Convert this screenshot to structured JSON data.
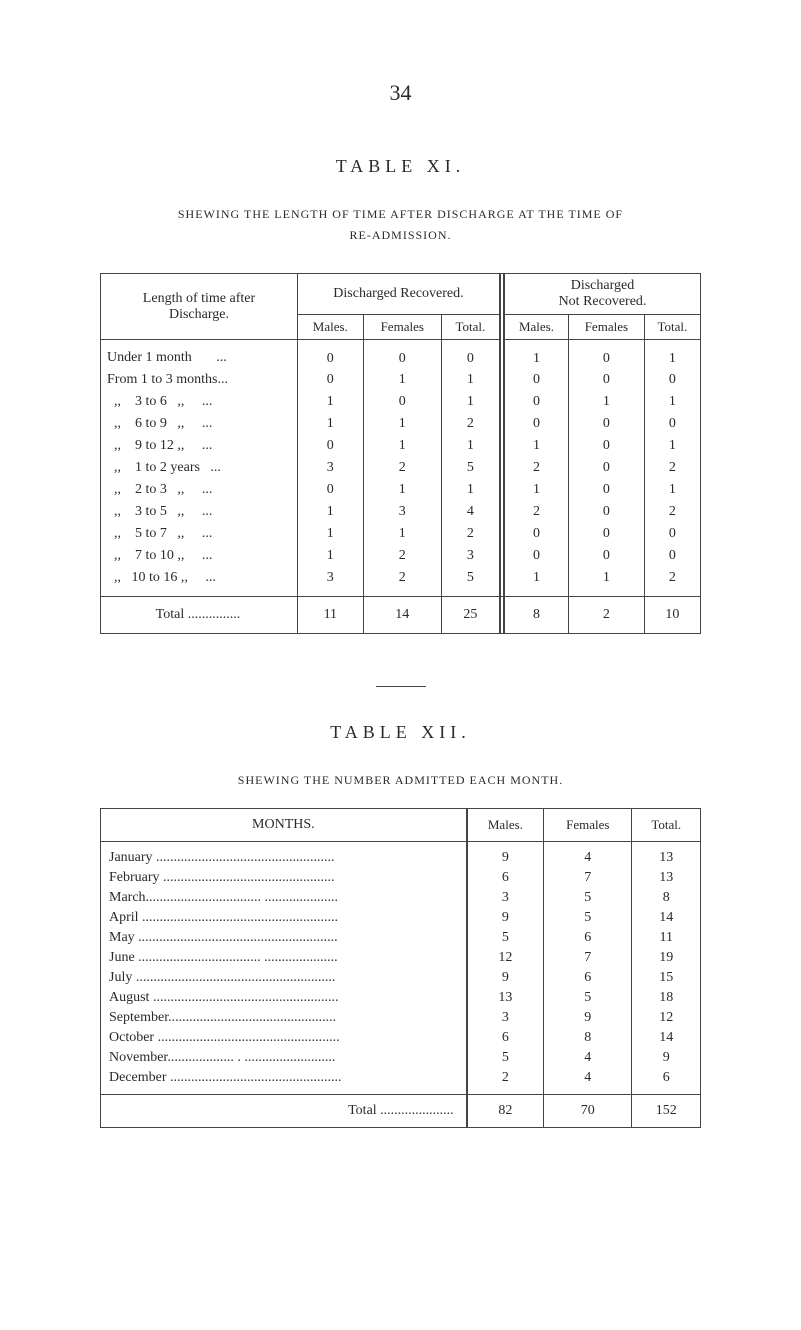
{
  "page_number": "34",
  "table_xi": {
    "label": "TABLE XI.",
    "title": "SHEWING THE LENGTH OF TIME AFTER DISCHARGE AT THE TIME OF",
    "subtitle": "RE-ADMISSION.",
    "row_header_top": "Length of time after",
    "row_header_bottom": "Discharge.",
    "group1": "Discharged Recovered.",
    "group2_top": "Discharged",
    "group2_bottom": "Not Recovered.",
    "col_males": "Males.",
    "col_females": "Females",
    "col_total": "Total.",
    "rows": [
      {
        "label": "Under 1 month       ...",
        "m1": "0",
        "f1": "0",
        "t1": "0",
        "m2": "1",
        "f2": "0",
        "t2": "1"
      },
      {
        "label": "From 1 to 3 months...",
        "m1": "0",
        "f1": "1",
        "t1": "1",
        "m2": "0",
        "f2": "0",
        "t2": "0"
      },
      {
        "label": "  ,,    3 to 6   ,,     ...",
        "m1": "1",
        "f1": "0",
        "t1": "1",
        "m2": "0",
        "f2": "1",
        "t2": "1"
      },
      {
        "label": "  ,,    6 to 9   ,,     ...",
        "m1": "1",
        "f1": "1",
        "t1": "2",
        "m2": "0",
        "f2": "0",
        "t2": "0"
      },
      {
        "label": "  ,,    9 to 12 ,,     ...",
        "m1": "0",
        "f1": "1",
        "t1": "1",
        "m2": "1",
        "f2": "0",
        "t2": "1"
      },
      {
        "label": "  ,,    1 to 2 years   ...",
        "m1": "3",
        "f1": "2",
        "t1": "5",
        "m2": "2",
        "f2": "0",
        "t2": "2"
      },
      {
        "label": "  ,,    2 to 3   ,,     ...",
        "m1": "0",
        "f1": "1",
        "t1": "1",
        "m2": "1",
        "f2": "0",
        "t2": "1"
      },
      {
        "label": "  ,,    3 to 5   ,,     ...",
        "m1": "1",
        "f1": "3",
        "t1": "4",
        "m2": "2",
        "f2": "0",
        "t2": "2"
      },
      {
        "label": "  ,,    5 to 7   ,,     ...",
        "m1": "1",
        "f1": "1",
        "t1": "2",
        "m2": "0",
        "f2": "0",
        "t2": "0"
      },
      {
        "label": "  ,,    7 to 10 ,,     ...",
        "m1": "1",
        "f1": "2",
        "t1": "3",
        "m2": "0",
        "f2": "0",
        "t2": "0"
      },
      {
        "label": "  ,,   10 to 16 ,,     ...",
        "m1": "3",
        "f1": "2",
        "t1": "5",
        "m2": "1",
        "f2": "1",
        "t2": "2"
      }
    ],
    "total_label": "Total ...............",
    "totals": {
      "m1": "11",
      "f1": "14",
      "t1": "25",
      "m2": "8",
      "f2": "2",
      "t2": "10"
    }
  },
  "table_xii": {
    "label": "TABLE XII.",
    "title": "SHEWING THE NUMBER ADMITTED EACH MONTH.",
    "months_head": "MONTHS.",
    "col_males": "Males.",
    "col_females": "Females",
    "col_total": "Total.",
    "rows": [
      {
        "label": "January ...................................................",
        "m": "9",
        "f": "4",
        "t": "13"
      },
      {
        "label": "February .................................................",
        "m": "6",
        "f": "7",
        "t": "13"
      },
      {
        "label": "March................................. .....................",
        "m": "3",
        "f": "5",
        "t": "8"
      },
      {
        "label": "April ........................................................",
        "m": "9",
        "f": "5",
        "t": "14"
      },
      {
        "label": "May .........................................................",
        "m": "5",
        "f": "6",
        "t": "11"
      },
      {
        "label": "June ................................... .....................",
        "m": "12",
        "f": "7",
        "t": "19"
      },
      {
        "label": "July .........................................................",
        "m": "9",
        "f": "6",
        "t": "15"
      },
      {
        "label": "August .....................................................",
        "m": "13",
        "f": "5",
        "t": "18"
      },
      {
        "label": "September................................................",
        "m": "3",
        "f": "9",
        "t": "12"
      },
      {
        "label": "October ....................................................",
        "m": "6",
        "f": "8",
        "t": "14"
      },
      {
        "label": "November................... . ..........................",
        "m": "5",
        "f": "4",
        "t": "9"
      },
      {
        "label": "December .................................................",
        "m": "2",
        "f": "4",
        "t": "6"
      }
    ],
    "total_label": "Total .....................",
    "totals": {
      "m": "82",
      "f": "70",
      "t": "152"
    }
  }
}
